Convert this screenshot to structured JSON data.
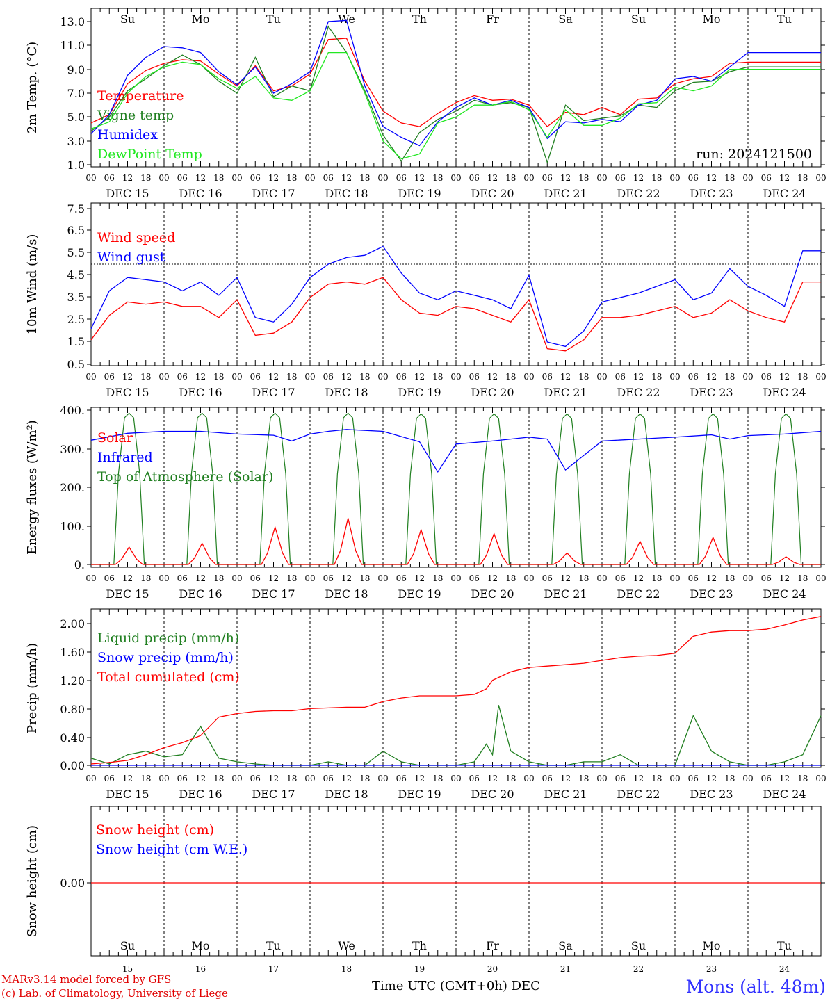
{
  "meteogram": {
    "run_label": "run: 2024121500",
    "station": "Mons (alt. 48m)",
    "credits": [
      "MARv3.14 model forced by GFS",
      "(c) Lab. of Climatology, University of Liege"
    ],
    "xaxis_title": "Time UTC (GMT+0h) DEC",
    "days_top": [
      "Su",
      "Mo",
      "Tu",
      "We",
      "Th",
      "Fr",
      "Sa",
      "Su",
      "Mo",
      "Tu"
    ],
    "days_top_colors": [
      "#e00000",
      "#000000",
      "#000000",
      "#000000",
      "#000000",
      "#000000",
      "#e00000",
      "#e00000",
      "#000000",
      "#000000"
    ],
    "date_labels": [
      "DEC 15",
      "DEC 16",
      "DEC 17",
      "DEC 18",
      "DEC 19",
      "DEC 20",
      "DEC 21",
      "DEC 22",
      "DEC 23",
      "DEC 24"
    ],
    "hour_labels": [
      "00",
      "06",
      "12",
      "18"
    ],
    "bottom_days": [
      "Su",
      "Mo",
      "Tu",
      "We",
      "Th",
      "Fr",
      "Sa",
      "Su",
      "Mo",
      "Tu"
    ],
    "bottom_day_colors": [
      "#e00000",
      "#000000",
      "#000000",
      "#000000",
      "#000000",
      "#000000",
      "#e00000",
      "#e00000",
      "#000000",
      "#000000"
    ],
    "bottom_dates": [
      "15",
      "16",
      "17",
      "18",
      "19",
      "20",
      "21",
      "22",
      "23",
      "24"
    ]
  },
  "chart_data": [
    {
      "type": "line",
      "ylabel": "2m Temp. (°C)",
      "ylim": [
        1,
        13.5
      ],
      "yticks": [
        "1.0",
        "3.0",
        "5.0",
        "7.0",
        "9.0",
        "11.0",
        "13.0"
      ],
      "x_unit": "hours since DEC 15 00 UTC",
      "series": [
        {
          "name": "Temperature",
          "color": "#ff0000",
          "x": [
            0,
            6,
            12,
            18,
            24,
            30,
            36,
            42,
            48,
            54,
            60,
            66,
            72,
            78,
            84,
            90,
            96,
            102,
            108,
            114,
            120,
            126,
            132,
            138,
            144,
            150,
            156,
            162,
            168,
            174,
            180,
            186,
            192,
            198,
            204,
            210,
            216,
            222,
            228,
            234,
            240
          ],
          "y": [
            4.5,
            5.2,
            7.8,
            8.9,
            9.5,
            9.8,
            9.7,
            8.6,
            7.6,
            9.3,
            7.2,
            7.6,
            8.6,
            11.5,
            11.6,
            8.0,
            5.5,
            4.5,
            4.2,
            5.3,
            6.2,
            6.8,
            6.4,
            6.5,
            6.0,
            4.2,
            5.4,
            5.2,
            5.8,
            5.2,
            6.5,
            6.6,
            7.8,
            8.2,
            8.4,
            9.5,
            9.6,
            9.6,
            9.6,
            9.6,
            9.6
          ]
        },
        {
          "name": "Vigne temp",
          "color": "#207f20",
          "x": [
            0,
            6,
            12,
            18,
            24,
            30,
            36,
            42,
            48,
            54,
            60,
            66,
            72,
            78,
            84,
            90,
            96,
            102,
            108,
            114,
            120,
            126,
            132,
            138,
            144,
            150,
            156,
            162,
            168,
            174,
            180,
            186,
            192,
            198,
            204,
            210,
            216,
            222,
            228,
            234,
            240
          ],
          "y": [
            3.8,
            5.0,
            7.2,
            8.2,
            9.3,
            10.2,
            9.4,
            8.0,
            7.0,
            10.0,
            6.7,
            7.6,
            7.2,
            12.6,
            10.4,
            7.2,
            3.5,
            1.3,
            3.7,
            4.8,
            5.5,
            6.4,
            6.0,
            6.2,
            5.8,
            1.2,
            6.0,
            4.7,
            4.9,
            5.1,
            6.0,
            5.8,
            7.2,
            7.9,
            8.0,
            8.8,
            9.2,
            9.2,
            9.2,
            9.2,
            9.2
          ]
        },
        {
          "name": "Humidex",
          "color": "#0000ff",
          "x": [
            0,
            6,
            12,
            18,
            24,
            30,
            36,
            42,
            48,
            54,
            60,
            66,
            72,
            78,
            84,
            90,
            96,
            102,
            108,
            114,
            120,
            126,
            132,
            138,
            144,
            150,
            156,
            162,
            168,
            174,
            180,
            186,
            192,
            198,
            204,
            210,
            216,
            222,
            228,
            234,
            240
          ],
          "y": [
            3.6,
            5.2,
            8.5,
            10.0,
            10.9,
            10.8,
            10.4,
            8.8,
            7.7,
            9.2,
            7.0,
            7.8,
            8.8,
            13.0,
            13.1,
            7.6,
            4.2,
            3.3,
            2.6,
            4.6,
            5.8,
            6.6,
            6.0,
            6.4,
            5.8,
            3.2,
            4.6,
            4.5,
            4.8,
            4.6,
            6.0,
            6.4,
            8.2,
            8.4,
            8.0,
            9.2,
            10.4,
            10.4,
            10.4,
            10.4,
            10.4
          ]
        },
        {
          "name": "DewPoint Temp",
          "color": "#22e822",
          "x": [
            0,
            6,
            12,
            18,
            24,
            30,
            36,
            42,
            48,
            54,
            60,
            66,
            72,
            78,
            84,
            90,
            96,
            102,
            108,
            114,
            120,
            126,
            132,
            138,
            144,
            150,
            156,
            162,
            168,
            174,
            180,
            186,
            192,
            198,
            204,
            210,
            216,
            222,
            228,
            234,
            240
          ],
          "y": [
            4.0,
            4.6,
            7.0,
            8.4,
            9.2,
            9.6,
            9.4,
            8.2,
            7.4,
            8.4,
            6.6,
            6.4,
            7.2,
            10.4,
            10.4,
            7.0,
            3.0,
            1.5,
            1.9,
            4.5,
            5.0,
            6.0,
            6.0,
            6.3,
            5.6,
            3.3,
            5.6,
            4.3,
            4.3,
            4.9,
            6.1,
            6.2,
            7.5,
            7.2,
            7.6,
            9.0,
            9.0,
            9.0,
            9.0,
            9.0,
            9.0
          ]
        }
      ]
    },
    {
      "type": "line",
      "ylabel": "10m Wind (m/s)",
      "ylim": [
        0.5,
        7.5
      ],
      "yticks": [
        "0.5",
        "1.5",
        "2.5",
        "3.5",
        "4.5",
        "5.5",
        "6.5",
        "7.5"
      ],
      "x_unit": "hours since DEC 15 00 UTC",
      "series": [
        {
          "name": "Wind speed",
          "color": "#ff0000",
          "x": [
            0,
            6,
            12,
            18,
            24,
            30,
            36,
            42,
            48,
            54,
            60,
            66,
            72,
            78,
            84,
            90,
            96,
            102,
            108,
            114,
            120,
            126,
            132,
            138,
            144,
            150,
            156,
            162,
            168,
            174,
            180,
            186,
            192,
            198,
            204,
            210,
            216,
            222,
            228,
            234,
            240
          ],
          "y": [
            1.6,
            2.7,
            3.3,
            3.2,
            3.3,
            3.1,
            3.1,
            2.6,
            3.4,
            1.8,
            1.9,
            2.4,
            3.5,
            4.1,
            4.2,
            4.1,
            4.4,
            3.4,
            2.8,
            2.7,
            3.1,
            3.0,
            2.7,
            2.4,
            3.4,
            1.2,
            1.1,
            1.6,
            2.6,
            2.6,
            2.7,
            2.9,
            3.1,
            2.6,
            2.8,
            3.4,
            2.9,
            2.6,
            2.4,
            4.2,
            4.2
          ]
        },
        {
          "name": "Wind gust",
          "color": "#0000ff",
          "x": [
            0,
            6,
            12,
            18,
            24,
            30,
            36,
            42,
            48,
            54,
            60,
            66,
            72,
            78,
            84,
            90,
            96,
            102,
            108,
            114,
            120,
            126,
            132,
            138,
            144,
            150,
            156,
            162,
            168,
            174,
            180,
            186,
            192,
            198,
            204,
            210,
            216,
            222,
            228,
            234,
            240
          ],
          "y": [
            2.1,
            3.8,
            4.4,
            4.3,
            4.2,
            3.8,
            4.2,
            3.6,
            4.4,
            2.6,
            2.4,
            3.2,
            4.4,
            5.0,
            5.3,
            5.4,
            5.8,
            4.6,
            3.7,
            3.4,
            3.8,
            3.6,
            3.4,
            3.0,
            4.5,
            1.5,
            1.3,
            2.0,
            3.3,
            3.5,
            3.7,
            4.0,
            4.3,
            3.4,
            3.7,
            4.8,
            4.0,
            3.6,
            3.1,
            5.6,
            5.6
          ]
        }
      ],
      "reference_line": 5.0
    },
    {
      "type": "line",
      "ylabel": "Energy fluxes (W/m²)",
      "ylim": [
        0,
        400
      ],
      "yticks": [
        "0.",
        "100.",
        "200.",
        "300.",
        "400."
      ],
      "x_unit": "hours since DEC 15 00 UTC",
      "series": [
        {
          "name": "Solar",
          "color": "#ff0000",
          "daily_peak": [
            45,
            55,
            97,
            120,
            90,
            80,
            30,
            60,
            70,
            20
          ]
        },
        {
          "name": "Infrared",
          "color": "#0000ff",
          "x": [
            0,
            12,
            24,
            36,
            48,
            60,
            66,
            72,
            78,
            84,
            96,
            108,
            114,
            120,
            132,
            144,
            150,
            156,
            168,
            180,
            192,
            204,
            210,
            216,
            228,
            240
          ],
          "y": [
            322,
            340,
            345,
            345,
            338,
            335,
            320,
            338,
            345,
            350,
            345,
            318,
            240,
            312,
            320,
            330,
            325,
            245,
            320,
            325,
            330,
            336,
            325,
            334,
            338,
            345
          ]
        },
        {
          "name": "Top of Atmosphere (Solar)",
          "color": "#207f20",
          "daily_peak": [
            392,
            392,
            392,
            392,
            390,
            390,
            390,
            390,
            390,
            390
          ]
        }
      ]
    },
    {
      "type": "line",
      "ylabel": "Precip (mm/h)",
      "ylim": [
        0,
        2.2
      ],
      "yticks": [
        "0.00",
        "0.40",
        "0.80",
        "1.20",
        "1.60",
        "2.00"
      ],
      "x_unit": "hours since DEC 15 00 UTC",
      "series": [
        {
          "name": "Liquid precip (mm/h)",
          "color": "#207f20",
          "x": [
            0,
            6,
            12,
            18,
            24,
            30,
            36,
            42,
            48,
            54,
            60,
            66,
            72,
            78,
            84,
            90,
            96,
            102,
            108,
            114,
            120,
            126,
            130,
            132,
            134,
            138,
            144,
            150,
            156,
            162,
            168,
            174,
            180,
            186,
            192,
            198,
            204,
            210,
            216,
            222,
            228,
            234,
            240
          ],
          "y": [
            0.1,
            0.02,
            0.15,
            0.2,
            0.12,
            0.15,
            0.55,
            0.1,
            0.05,
            0.02,
            0.0,
            0.0,
            0.0,
            0.05,
            0.0,
            0.0,
            0.2,
            0.05,
            0.0,
            0.0,
            0.0,
            0.05,
            0.3,
            0.15,
            0.85,
            0.2,
            0.05,
            0.0,
            0.0,
            0.05,
            0.05,
            0.15,
            0.0,
            0.0,
            0.0,
            0.7,
            0.2,
            0.05,
            0.0,
            0.0,
            0.05,
            0.15,
            0.7
          ]
        },
        {
          "name": "Snow precip (mm/h)",
          "color": "#0000ff",
          "x": [
            0,
            240
          ],
          "y": [
            0.0,
            0.0
          ]
        },
        {
          "name": "Total cumulated (cm)",
          "color": "#ff0000",
          "x": [
            0,
            6,
            12,
            18,
            24,
            30,
            36,
            42,
            48,
            54,
            60,
            66,
            72,
            78,
            84,
            90,
            96,
            102,
            108,
            114,
            120,
            126,
            130,
            132,
            138,
            144,
            150,
            156,
            162,
            168,
            174,
            180,
            186,
            192,
            198,
            204,
            210,
            216,
            222,
            228,
            234,
            240
          ],
          "y": [
            0.02,
            0.04,
            0.07,
            0.15,
            0.25,
            0.32,
            0.42,
            0.68,
            0.73,
            0.76,
            0.77,
            0.77,
            0.8,
            0.81,
            0.82,
            0.82,
            0.9,
            0.95,
            0.98,
            0.98,
            0.98,
            1.0,
            1.08,
            1.2,
            1.32,
            1.38,
            1.4,
            1.42,
            1.44,
            1.48,
            1.52,
            1.54,
            1.55,
            1.58,
            1.82,
            1.88,
            1.9,
            1.9,
            1.92,
            1.98,
            2.05,
            2.1
          ]
        }
      ]
    },
    {
      "type": "line",
      "ylabel": "Snow height (cm)",
      "yticks": [
        "0.00"
      ],
      "x_unit": "hours since DEC 15 00 UTC",
      "series": [
        {
          "name": "Snow height (cm)",
          "color": "#ff0000",
          "x": [
            0,
            240
          ],
          "y": [
            0,
            0
          ]
        },
        {
          "name": "Snow height (cm W.E.)",
          "color": "#0000ff",
          "x": [
            0,
            240
          ],
          "y": [
            0,
            0
          ]
        }
      ]
    }
  ]
}
